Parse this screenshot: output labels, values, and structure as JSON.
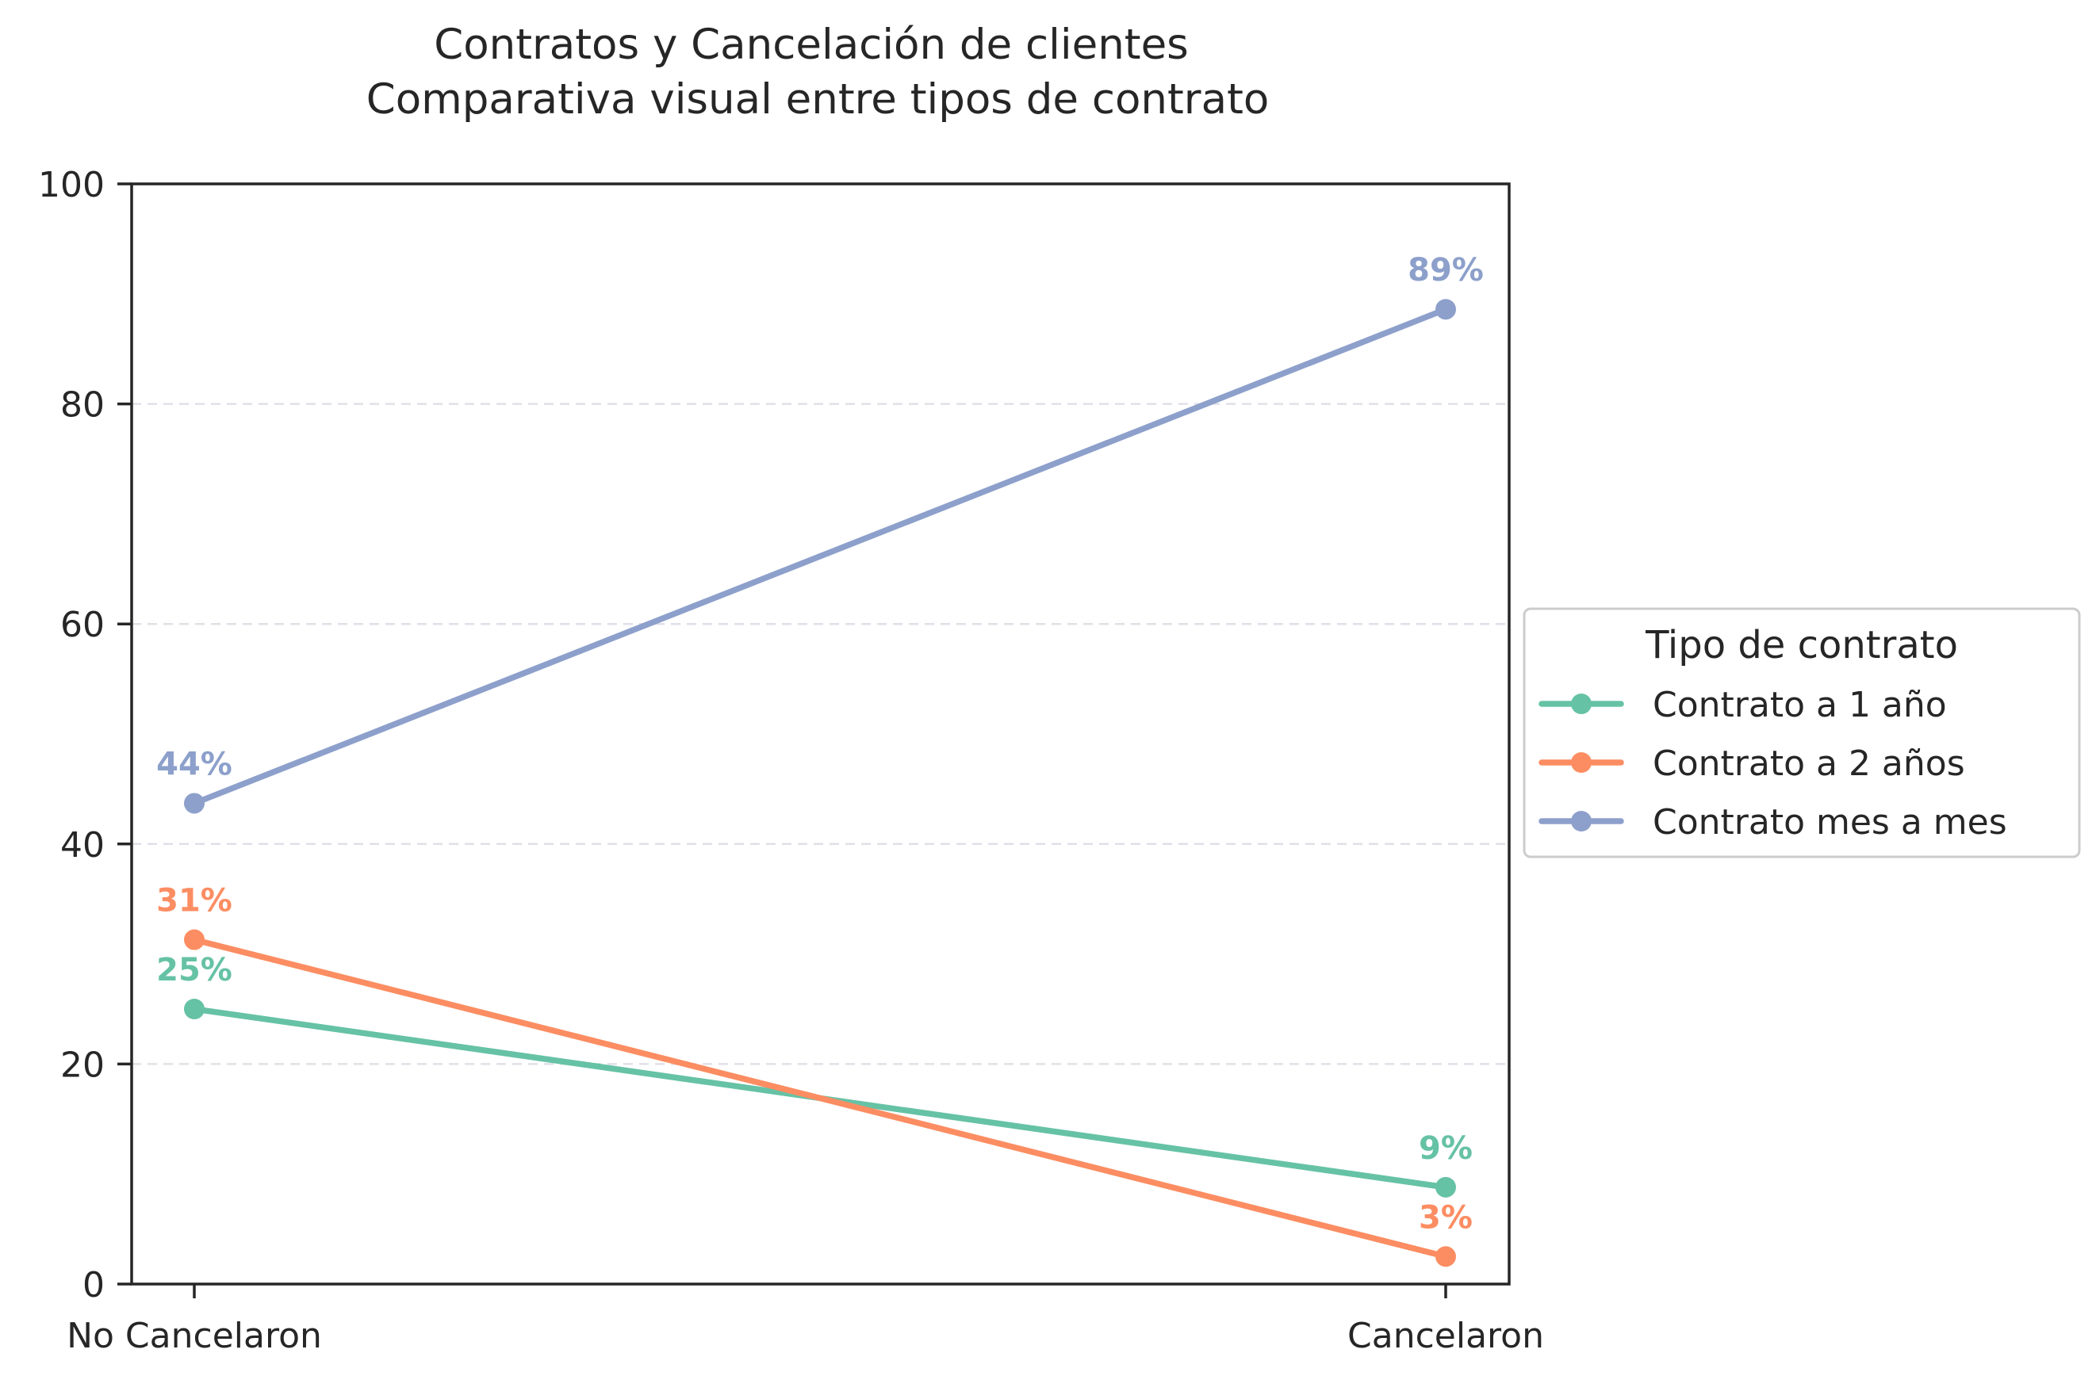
{
  "chart_data": {
    "type": "line",
    "title": "Contratos y Cancelación de clientes",
    "subtitle": "Comparativa visual entre tipos de contrato",
    "xlabel": "",
    "ylabel": "",
    "categories": [
      "No Cancelaron",
      "Cancelaron"
    ],
    "ylim": [
      0,
      100
    ],
    "yticks": [
      "0",
      "20",
      "40",
      "60",
      "80",
      "100"
    ],
    "grid": "horizontal dashed",
    "legend": {
      "title": "Tipo de contrato",
      "placement": "right"
    },
    "series": [
      {
        "name": "Contrato a 1 año",
        "color": "#66c2a5",
        "values": [
          25.0,
          8.8
        ],
        "labels": [
          "25%",
          "9%"
        ]
      },
      {
        "name": "Contrato a 2 años",
        "color": "#fc8d62",
        "values": [
          31.3,
          2.5
        ],
        "labels": [
          "31%",
          "3%"
        ]
      },
      {
        "name": "Contrato mes a mes",
        "color": "#8da0cb",
        "values": [
          43.7,
          88.6
        ],
        "labels": [
          "44%",
          "89%"
        ]
      }
    ]
  }
}
